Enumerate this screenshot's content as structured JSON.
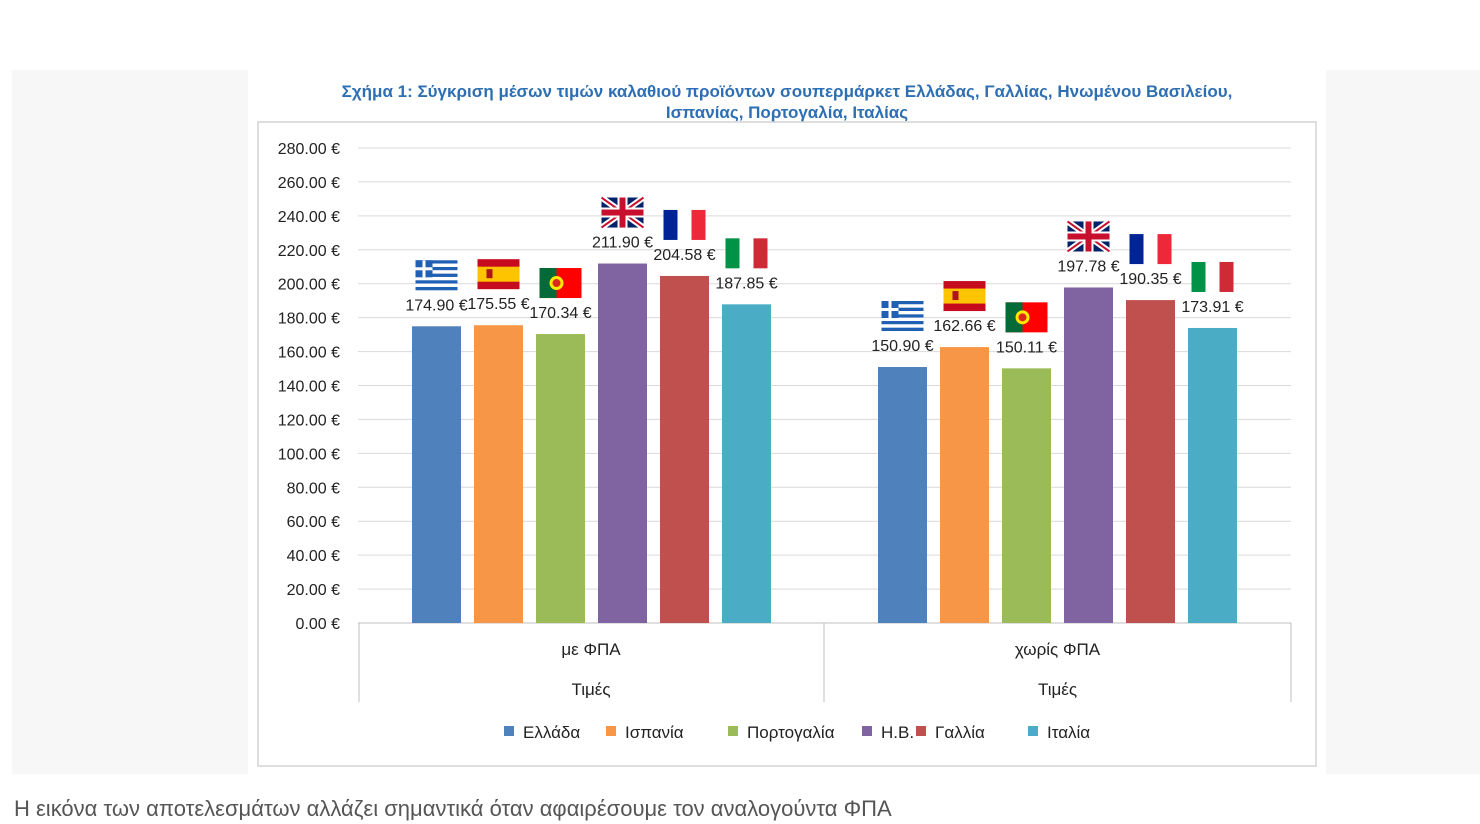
{
  "colors": {
    "title": "#2e6fb3",
    "grid": "#d9d9d9",
    "series": [
      "#4f81bd",
      "#f79646",
      "#9bbb59",
      "#8064a2",
      "#c0504d",
      "#4bacc6"
    ]
  },
  "caption": "Η εικόνα των αποτελεσμάτων αλλάζει σημαντικά όταν αφαιρέσουμε τον αναλογούντα ΦΠΑ",
  "chart_data": {
    "type": "bar",
    "title_lines": [
      "Σχήμα 1: Σύγκριση μέσων τιμών καλαθιού προϊόντων σουπερμάρκετ Ελλάδας, Γαλλίας, Ηνωμένου Βασιλείου,",
      "Ισπανίας, Πορτογαλία, Ιταλίας"
    ],
    "categories": [
      "με ΦΠΑ",
      "χωρίς ΦΠΑ"
    ],
    "xlabel": "Τιμές",
    "ylim": [
      0,
      280
    ],
    "y_ticks": [
      0,
      20,
      40,
      60,
      80,
      100,
      120,
      140,
      160,
      180,
      200,
      220,
      240,
      260,
      280
    ],
    "y_tick_labels": [
      "0.00 €",
      "20.00 €",
      "40.00 €",
      "60.00 €",
      "80.00 €",
      "100.00 €",
      "120.00 €",
      "140.00 €",
      "160.00 €",
      "180.00 €",
      "200.00 €",
      "220.00 €",
      "240.00 €",
      "260.00 €",
      "280.00 €"
    ],
    "legend_position": "bottom",
    "series": [
      {
        "name": "Ελλάδα",
        "flag": "greece-flag-icon",
        "values": [
          174.9,
          150.9
        ],
        "labels": [
          "174.90 €",
          "150.90 €"
        ]
      },
      {
        "name": "Ισπανία",
        "flag": "spain-flag-icon",
        "values": [
          175.55,
          162.66
        ],
        "labels": [
          "175.55 €",
          "162.66 €"
        ]
      },
      {
        "name": "Πορτογαλία",
        "flag": "portugal-flag-icon",
        "values": [
          170.34,
          150.11
        ],
        "labels": [
          "170.34 €",
          "150.11 €"
        ]
      },
      {
        "name": "Η.Β.",
        "flag": "uk-flag-icon",
        "values": [
          211.9,
          197.78
        ],
        "labels": [
          "211.90 €",
          "197.78 €"
        ]
      },
      {
        "name": "Γαλλία",
        "flag": "france-flag-icon",
        "values": [
          204.58,
          190.35
        ],
        "labels": [
          "204.58 €",
          "190.35 €"
        ]
      },
      {
        "name": "Ιταλία",
        "flag": "italy-flag-icon",
        "values": [
          187.85,
          173.91
        ],
        "labels": [
          "187.85 €",
          "173.91 €"
        ]
      }
    ]
  }
}
